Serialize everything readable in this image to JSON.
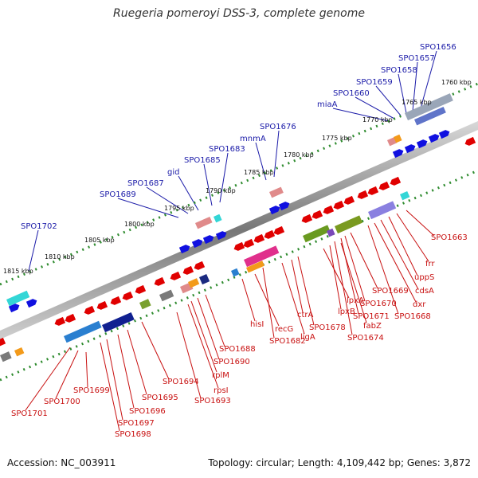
{
  "title": "Ruegeria pomeroyi DSS-3, complete genome",
  "footer": {
    "accession": "Accession: NC_003911",
    "topology": "Topology: circular; Length: 4,109,442 bp; Genes: 3,872"
  },
  "ticks": [
    "1760 kbp",
    "1765 kbp",
    "1770 kbp",
    "1775 kbp",
    "1780 kbp",
    "1785 kbp",
    "1790 kbp",
    "1795 kbp",
    "1800 kbp",
    "1805 kbp",
    "1810 kbp",
    "1815 kbp"
  ],
  "top_labels": [
    "SPO1656",
    "SPO1657",
    "SPO1658",
    "SPO1659",
    "SPO1660",
    "miaA",
    "SPO1676",
    "mnmA",
    "SPO1683",
    "SPO1685",
    "gid",
    "SPO1687",
    "SPO1689",
    "SPO1702"
  ],
  "bottom_labels": [
    "SPO1663",
    "frr",
    "uppS",
    "cdsA",
    "dxr",
    "SPO1668",
    "SPO1669",
    "SPO1670",
    "SPO1671",
    "SPO1674",
    "fabZ",
    "lpxB",
    "lpxA",
    "SPO1678",
    "ctrA",
    "ligA",
    "SPO1682",
    "recG",
    "hisI",
    "SPO1688",
    "SPO1690",
    "rplM",
    "rpsI",
    "SPO1693",
    "SPO1694",
    "SPO1695",
    "SPO1696",
    "SPO1697",
    "SPO1698",
    "SPO1699",
    "SPO1700",
    "SPO1701"
  ],
  "colors": {
    "backbone": "#888888",
    "top_label": "#1a1aa8",
    "bottom_label": "#c81010",
    "dots": "#2e8b2e",
    "gene_forward": "#1010e0",
    "gene_reverse": "#e00000"
  }
}
